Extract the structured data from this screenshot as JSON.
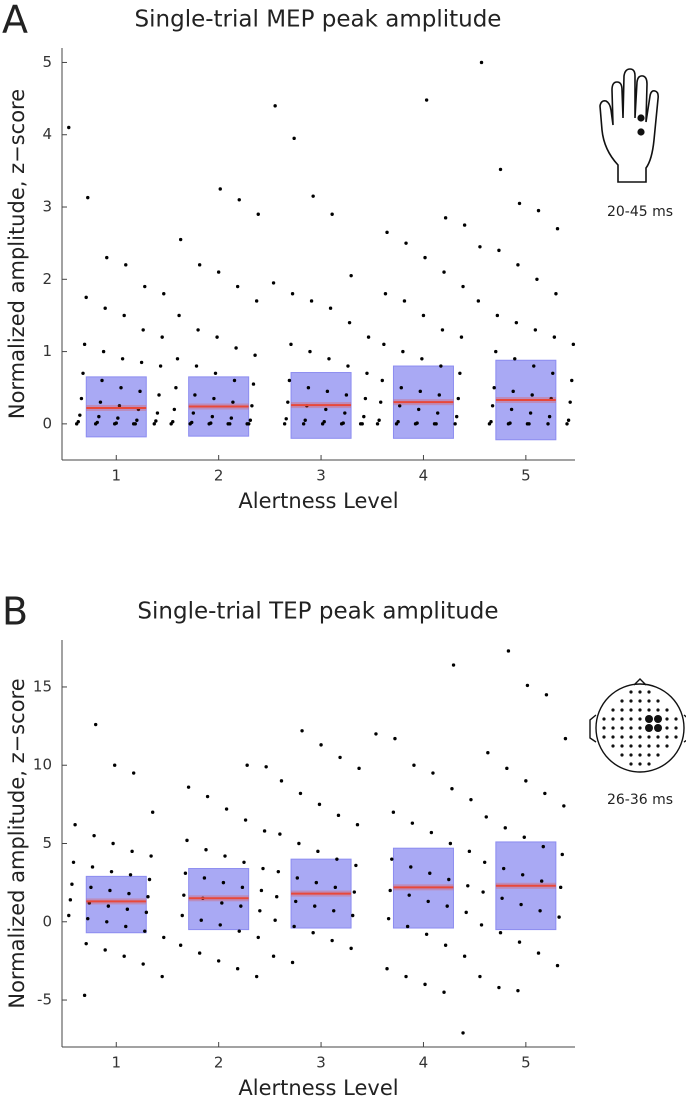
{
  "chart_data": [
    {
      "type": "strip",
      "panel_label": "A",
      "title": "Single-trial MEP peak amplitude",
      "x_label": "Alertness Level",
      "y_label": "Normalized amplitude, z−score",
      "annotation": "20-45 ms",
      "x": [
        1,
        2,
        3,
        4,
        5
      ],
      "xlim": [
        0.47,
        5.48
      ],
      "xticks": [
        1,
        2,
        3,
        4,
        5
      ],
      "ylim": [
        -0.5,
        5.2
      ],
      "yticks": [
        0,
        1,
        2,
        3,
        4,
        5
      ],
      "box_color": "#8c8cf0",
      "mean_color": "#e8483a",
      "point_color": "#000000",
      "box_high": [
        0.65,
        0.65,
        0.71,
        0.8,
        0.88
      ],
      "box_low": [
        -0.18,
        -0.17,
        -0.2,
        -0.2,
        -0.22
      ],
      "means": [
        0.22,
        0.24,
        0.26,
        0.3,
        0.33
      ],
      "points": [
        [
          4.1,
          3.13,
          2.3,
          2.2,
          1.9,
          1.8,
          1.75,
          1.6,
          1.5,
          1.3,
          1.2,
          1.1,
          1.0,
          0.9,
          0.85,
          0.8,
          0.7,
          0.6,
          0.5,
          0.45,
          0.4,
          0.35,
          0.3,
          0.25,
          0.2,
          0.15,
          0.12,
          0.1,
          0.08,
          0.05,
          0.04,
          0.03,
          0.02,
          0.01,
          0,
          0,
          0,
          0,
          0,
          0
        ],
        [
          3.25,
          3.1,
          2.9,
          2.55,
          2.2,
          2.1,
          1.9,
          1.7,
          1.5,
          1.3,
          1.2,
          1.05,
          0.95,
          0.9,
          0.8,
          0.7,
          0.6,
          0.55,
          0.5,
          0.4,
          0.35,
          0.3,
          0.25,
          0.2,
          0.15,
          0.1,
          0.08,
          0.05,
          0.03,
          0.02,
          0.01,
          0,
          0,
          0,
          0,
          0,
          0,
          0
        ],
        [
          4.4,
          3.95,
          3.15,
          2.9,
          2.05,
          1.95,
          1.8,
          1.7,
          1.6,
          1.4,
          1.2,
          1.1,
          1.0,
          0.9,
          0.8,
          0.7,
          0.6,
          0.5,
          0.45,
          0.4,
          0.35,
          0.3,
          0.25,
          0.2,
          0.15,
          0.1,
          0.07,
          0.05,
          0.03,
          0.01,
          0,
          0,
          0,
          0,
          0,
          0
        ],
        [
          4.48,
          2.85,
          2.75,
          2.65,
          2.5,
          2.3,
          2.1,
          1.9,
          1.8,
          1.7,
          1.5,
          1.3,
          1.2,
          1.1,
          1.0,
          0.9,
          0.8,
          0.7,
          0.6,
          0.5,
          0.45,
          0.4,
          0.35,
          0.3,
          0.25,
          0.2,
          0.15,
          0.1,
          0.05,
          0.03,
          0.01,
          0,
          0,
          0,
          0,
          0,
          0
        ],
        [
          5.0,
          3.52,
          3.05,
          2.95,
          2.7,
          2.45,
          2.4,
          2.2,
          2.0,
          1.8,
          1.7,
          1.5,
          1.4,
          1.3,
          1.2,
          1.1,
          1.0,
          0.9,
          0.8,
          0.7,
          0.6,
          0.5,
          0.45,
          0.4,
          0.35,
          0.3,
          0.25,
          0.2,
          0.15,
          0.1,
          0.05,
          0.03,
          0.01,
          0,
          0,
          0,
          0,
          0,
          0
        ]
      ]
    },
    {
      "type": "strip",
      "panel_label": "B",
      "title": "Single-trial TEP peak amplitude",
      "x_label": "Alertness Level",
      "y_label": "Normalized amplitude, z−score",
      "annotation": "26-36 ms",
      "x": [
        1,
        2,
        3,
        4,
        5
      ],
      "xlim": [
        0.47,
        5.48
      ],
      "xticks": [
        1,
        2,
        3,
        4,
        5
      ],
      "ylim": [
        -8,
        18
      ],
      "yticks": [
        -5,
        0,
        5,
        10,
        15
      ],
      "box_color": "#8c8cf0",
      "mean_color": "#e8483a",
      "point_color": "#000000",
      "box_high": [
        2.9,
        3.4,
        4.0,
        4.7,
        5.1
      ],
      "box_low": [
        -0.7,
        -0.5,
        -0.4,
        -0.4,
        -0.5
      ],
      "means": [
        1.3,
        1.5,
        1.8,
        2.2,
        2.3
      ],
      "points": [
        [
          12.6,
          10.0,
          9.5,
          7.0,
          6.2,
          5.5,
          5.0,
          4.5,
          4.2,
          3.8,
          3.5,
          3.2,
          3.0,
          2.7,
          2.4,
          2.2,
          2.0,
          1.8,
          1.6,
          1.4,
          1.2,
          1.0,
          0.8,
          0.6,
          0.4,
          0.2,
          0,
          -0.3,
          -0.6,
          -1.0,
          -1.4,
          -1.8,
          -2.2,
          -2.7,
          -3.5,
          -4.7
        ],
        [
          10.0,
          9.9,
          8.6,
          8.0,
          7.2,
          6.5,
          5.8,
          5.2,
          4.6,
          4.2,
          3.8,
          3.4,
          3.1,
          2.8,
          2.5,
          2.2,
          2.0,
          1.7,
          1.5,
          1.2,
          1.0,
          0.7,
          0.4,
          0.1,
          -0.2,
          -0.6,
          -1.0,
          -1.5,
          -2.0,
          -2.5,
          -3.0,
          -3.5
        ],
        [
          12.2,
          11.3,
          10.5,
          9.8,
          9.0,
          8.2,
          7.5,
          6.8,
          6.2,
          5.6,
          5.0,
          4.5,
          4.0,
          3.6,
          3.2,
          2.8,
          2.5,
          2.2,
          1.9,
          1.6,
          1.3,
          1.0,
          0.7,
          0.4,
          0.1,
          -0.3,
          -0.7,
          -1.2,
          -1.7,
          -2.2,
          -2.6
        ],
        [
          16.4,
          12.0,
          11.7,
          10.0,
          9.5,
          8.5,
          7.8,
          7.0,
          6.3,
          5.7,
          5.0,
          4.5,
          4.0,
          3.5,
          3.1,
          2.7,
          2.3,
          2.0,
          1.7,
          1.3,
          1.0,
          0.6,
          0.2,
          -0.3,
          -0.8,
          -1.5,
          -2.2,
          -3.0,
          -3.5,
          -4.0,
          -4.5,
          -7.1
        ],
        [
          17.3,
          15.1,
          14.5,
          11.7,
          10.8,
          9.8,
          9.0,
          8.2,
          7.4,
          6.7,
          6.0,
          5.4,
          4.8,
          4.3,
          3.8,
          3.4,
          3.0,
          2.6,
          2.2,
          1.9,
          1.5,
          1.1,
          0.7,
          0.3,
          -0.2,
          -0.7,
          -1.3,
          -2.0,
          -2.8,
          -3.5,
          -4.2,
          -4.4
        ]
      ]
    }
  ]
}
